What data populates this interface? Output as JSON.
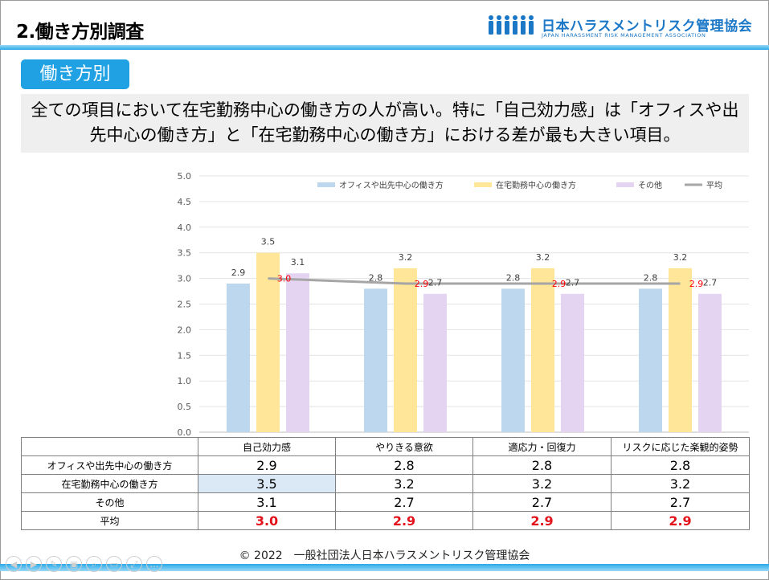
{
  "header": {
    "title": "2.働き方別調査",
    "org_name": "日本ハラスメントリスク管理協会",
    "org_name_en": "JAPAN HARASSMENT RISK MANAGEMENT ASSOCIATION"
  },
  "section_tag": "働き方別",
  "summary": {
    "line1": "全ての項目において在宅勤務中心の働き方の人が高い。特に「自己効力感」は「オフィスや出",
    "line2": "先中心の働き方」と「在宅勤務中心の働き方」における差が最も大きい項目。"
  },
  "colors": {
    "office": "#bdd7ee",
    "home": "#ffe699",
    "other": "#e4d4f2",
    "average_line": "#a6a6a6",
    "average_label": "#ff0000",
    "accent": "#1fa1e3"
  },
  "chart_data": {
    "type": "bar",
    "categories": [
      "自己効力感",
      "やりきる意欲",
      "適応力・回復力",
      "リスクに応じた楽観的姿勢"
    ],
    "series": [
      {
        "name": "オフィスや出先中心の働き方",
        "values": [
          2.9,
          2.8,
          2.8,
          2.8
        ]
      },
      {
        "name": "在宅勤務中心の働き方",
        "values": [
          3.5,
          3.2,
          3.2,
          3.2
        ]
      },
      {
        "name": "その他",
        "values": [
          3.1,
          2.7,
          2.7,
          2.7
        ]
      }
    ],
    "line_series": {
      "name": "平均",
      "values": [
        3.0,
        2.9,
        2.9,
        2.9
      ]
    },
    "display_values": {
      "office": [
        "2.9",
        "2.8",
        "2.8",
        "2.8"
      ],
      "home": [
        "3.5",
        "3.2",
        "3.2",
        "3.2"
      ],
      "other": [
        "3.1",
        "2.7",
        "2.7",
        "2.7"
      ],
      "average": [
        "3.0",
        "2.9",
        "2.9",
        "2.9"
      ]
    },
    "ylim": [
      0,
      5
    ],
    "yticks": [
      "0.0",
      "0.5",
      "1.0",
      "1.5",
      "2.0",
      "2.5",
      "3.0",
      "3.5",
      "4.0",
      "4.5",
      "5.0"
    ],
    "grid": true,
    "legend": "top-right",
    "title": "",
    "xlabel": "",
    "ylabel": ""
  },
  "table": {
    "headers": [
      "",
      "自己効力感",
      "やりきる意欲",
      "適応力・回復力",
      "リスクに応じた楽観的姿勢"
    ],
    "rows": [
      {
        "label": "オフィスや出先中心の働き方",
        "values": [
          "2.9",
          "2.8",
          "2.8",
          "2.8"
        ]
      },
      {
        "label": "在宅勤務中心の働き方",
        "values": [
          "3.5",
          "3.2",
          "3.2",
          "3.2"
        ]
      },
      {
        "label": "その他",
        "values": [
          "3.1",
          "2.7",
          "2.7",
          "2.7"
        ]
      },
      {
        "label": "平均",
        "values": [
          "3.0",
          "2.9",
          "2.9",
          "2.9"
        ]
      }
    ]
  },
  "footer": "© 2022　一般社団法人日本ハラスメントリスク管理協会",
  "player_controls": [
    "◀",
    "▶",
    "✎",
    "▣",
    "⌕",
    "▭",
    "⤢",
    "…"
  ]
}
